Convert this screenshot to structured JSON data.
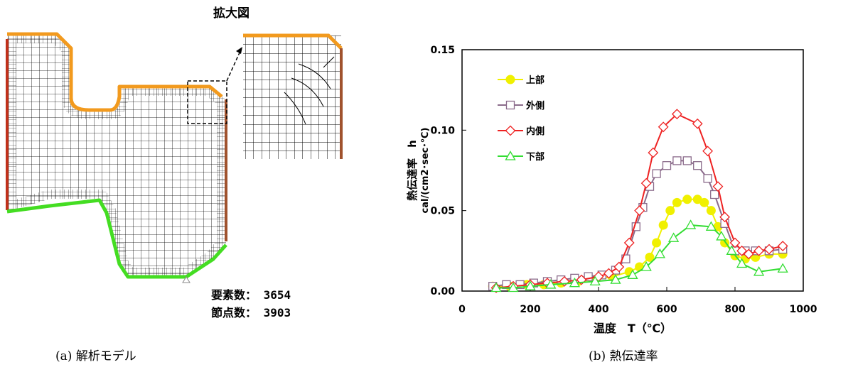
{
  "model_panel": {
    "zoom_title": "拡大図",
    "element_count_label": "要素数：",
    "element_count": "3654",
    "node_count_label": "節点数：",
    "node_count": "3903",
    "caption": "(a) 解析モデル",
    "colors": {
      "top_edge": "#f29a1e",
      "outer_edge": "#c0301a",
      "inner_edge": "#a0522d",
      "bottom_edge": "#44dd22",
      "mesh": "#000000"
    }
  },
  "chart_caption": "(b) 熱伝達率",
  "chart_data": {
    "type": "line",
    "xlabel": "温度　T（℃）",
    "ylabel_line1": "熱伝達率　h",
    "ylabel_line2": "cal/(cm2･sec･℃)",
    "xlim": [
      0,
      1000
    ],
    "ylim": [
      0,
      0.15
    ],
    "xticks": [
      "0",
      "200",
      "400",
      "600",
      "800",
      "1000"
    ],
    "yticks": [
      "0.00",
      "0.05",
      "0.10",
      "0.15"
    ],
    "grid": false,
    "legend_position": "top-left",
    "series": [
      {
        "name": "上部",
        "color": "#f0f000",
        "marker": "circle",
        "x": [
          90,
          140,
          190,
          240,
          290,
          340,
          390,
          440,
          490,
          520,
          550,
          570,
          590,
          610,
          630,
          660,
          690,
          710,
          730,
          750,
          770,
          800,
          830,
          860,
          900,
          940
        ],
        "y": [
          0.003,
          0.003,
          0.004,
          0.004,
          0.005,
          0.006,
          0.007,
          0.009,
          0.012,
          0.015,
          0.021,
          0.03,
          0.041,
          0.05,
          0.055,
          0.057,
          0.057,
          0.055,
          0.05,
          0.04,
          0.03,
          0.022,
          0.02,
          0.021,
          0.023,
          0.023
        ]
      },
      {
        "name": "外側",
        "color": "#8b6b8b",
        "marker": "square",
        "x": [
          90,
          130,
          170,
          210,
          250,
          290,
          330,
          370,
          410,
          450,
          480,
          510,
          530,
          550,
          570,
          600,
          630,
          660,
          690,
          720,
          740,
          770,
          800,
          830,
          860,
          900,
          940
        ],
        "y": [
          0.003,
          0.004,
          0.004,
          0.005,
          0.006,
          0.007,
          0.008,
          0.009,
          0.01,
          0.013,
          0.02,
          0.04,
          0.052,
          0.065,
          0.073,
          0.078,
          0.081,
          0.081,
          0.078,
          0.07,
          0.06,
          0.042,
          0.025,
          0.025,
          0.025,
          0.025,
          0.026
        ]
      },
      {
        "name": "内側",
        "color": "#ee2222",
        "marker": "diamond",
        "x": [
          100,
          150,
          200,
          250,
          300,
          350,
          400,
          430,
          460,
          490,
          520,
          540,
          560,
          590,
          630,
          690,
          720,
          750,
          770,
          800,
          820,
          840,
          870,
          900,
          940
        ],
        "y": [
          0.002,
          0.003,
          0.004,
          0.005,
          0.006,
          0.007,
          0.009,
          0.011,
          0.015,
          0.03,
          0.05,
          0.067,
          0.086,
          0.102,
          0.11,
          0.104,
          0.087,
          0.065,
          0.046,
          0.03,
          0.025,
          0.023,
          0.025,
          0.026,
          0.028
        ]
      },
      {
        "name": "下部",
        "color": "#33dd33",
        "marker": "triangle",
        "x": [
          100,
          150,
          200,
          260,
          330,
          390,
          450,
          500,
          540,
          580,
          620,
          670,
          730,
          760,
          790,
          820,
          870,
          940
        ],
        "y": [
          0.002,
          0.002,
          0.003,
          0.004,
          0.005,
          0.006,
          0.007,
          0.01,
          0.015,
          0.023,
          0.033,
          0.041,
          0.04,
          0.034,
          0.025,
          0.017,
          0.012,
          0.014
        ]
      }
    ]
  }
}
